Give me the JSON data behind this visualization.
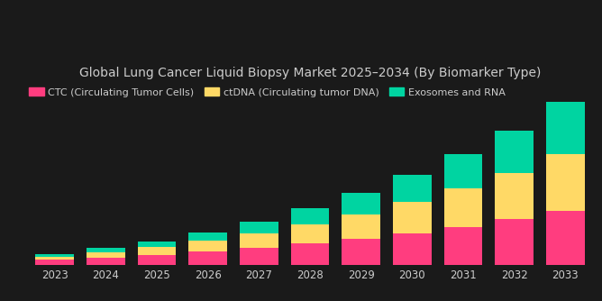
{
  "title": "Global Lung Cancer Liquid Biopsy Market 2025–2034 (By Biomarker Type)",
  "years": [
    2023,
    2024,
    2025,
    2026,
    2027,
    2028,
    2029,
    2030,
    2031,
    2032,
    2033
  ],
  "ctc": [
    0.5,
    0.72,
    0.95,
    1.28,
    1.62,
    2.05,
    2.52,
    3.08,
    3.7,
    4.42,
    5.2
  ],
  "ctdna": [
    0.32,
    0.52,
    0.75,
    1.05,
    1.4,
    1.88,
    2.4,
    3.05,
    3.72,
    4.52,
    5.55
  ],
  "exosomes": [
    0.22,
    0.4,
    0.6,
    0.85,
    1.18,
    1.55,
    2.05,
    2.6,
    3.3,
    4.05,
    5.05
  ],
  "ctc_color": "#FF3D7F",
  "ctdna_color": "#FFD966",
  "exosomes_color": "#00D4A1",
  "background_color": "#1a1a1a",
  "text_color": "#cccccc",
  "legend_labels": [
    "CTC (Circulating Tumor Cells)",
    "ctDNA (Circulating tumor DNA)",
    "Exosomes and RNA"
  ],
  "bar_width": 0.75,
  "ylim": [
    0,
    17.5
  ],
  "title_fontsize": 10,
  "legend_fontsize": 8
}
